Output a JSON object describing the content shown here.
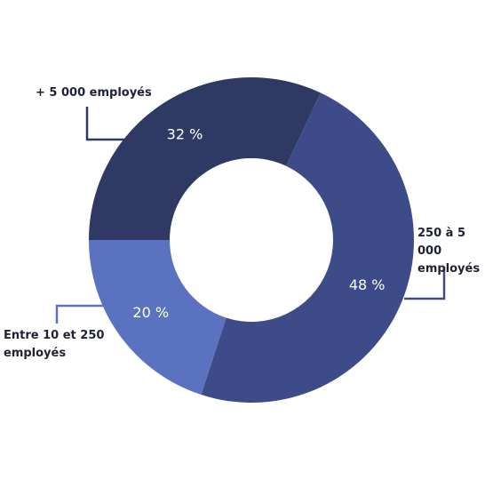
{
  "chart_data": {
    "type": "donut",
    "categories": [
      "+ 5 000 employés",
      "250 à 5 000 employés",
      "Entre 10 et 250 employés"
    ],
    "values": [
      32,
      48,
      20
    ],
    "value_labels": [
      "32 %",
      "48 %",
      "20 %"
    ],
    "colors": [
      "#2e3a63",
      "#3d4c88",
      "#5a72c0"
    ]
  }
}
